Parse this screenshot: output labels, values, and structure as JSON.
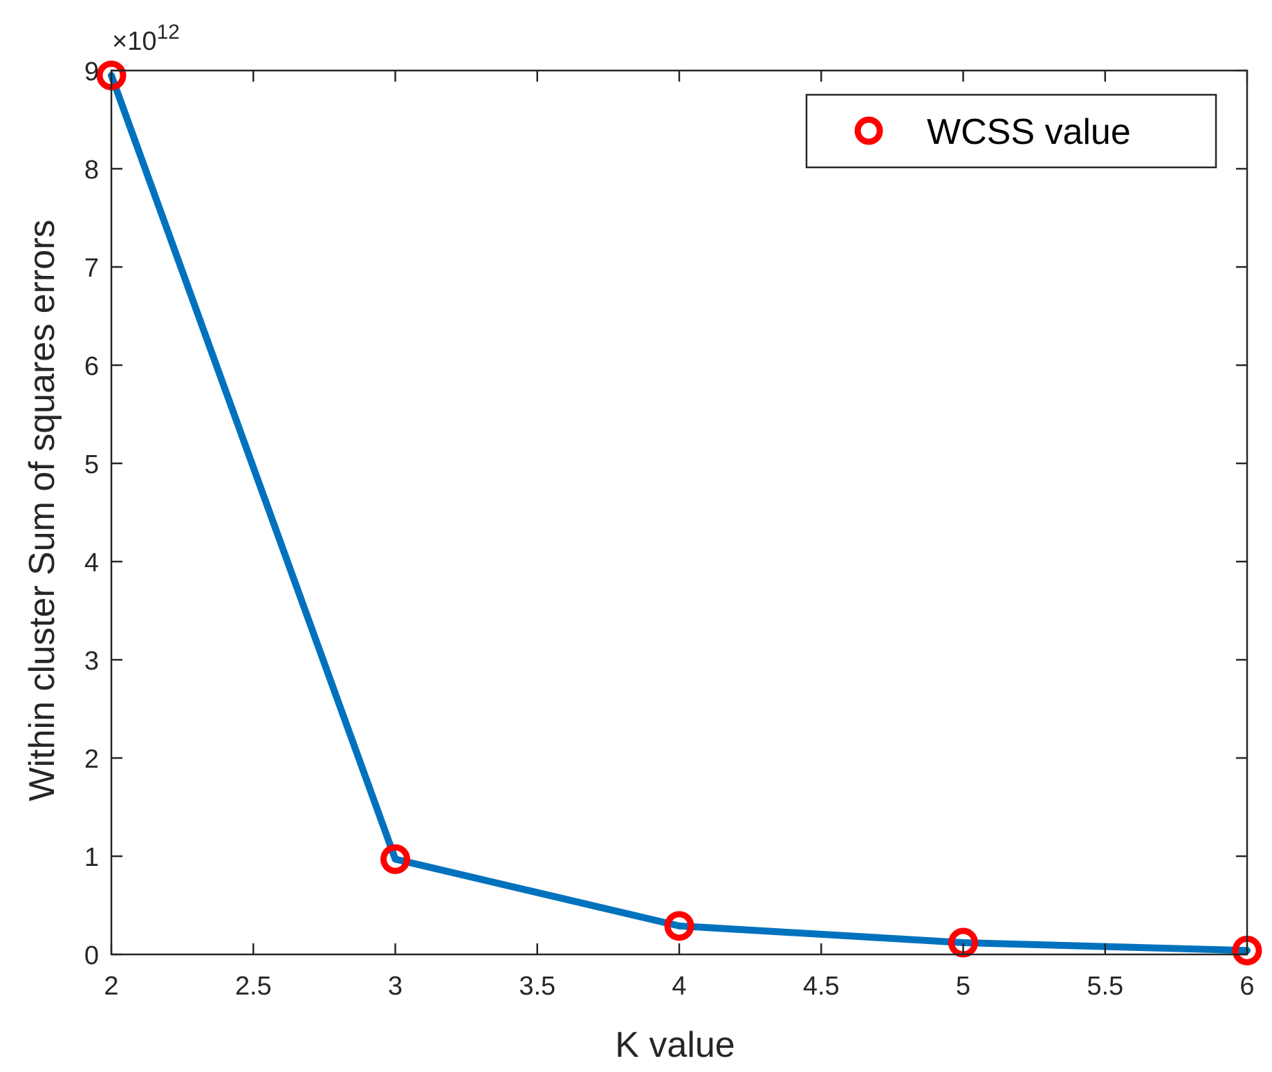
{
  "chart_data": {
    "type": "line",
    "title": "",
    "xlabel": "K value",
    "ylabel": "Within cluster Sum of squares errors",
    "y_exponent_label": "×10",
    "y_exponent_power": "12",
    "xlim": [
      2,
      6
    ],
    "ylim": [
      0,
      9
    ],
    "x_ticks": [
      "2",
      "2.5",
      "3",
      "3.5",
      "4",
      "4.5",
      "5",
      "5.5",
      "6"
    ],
    "y_ticks": [
      "0",
      "1",
      "2",
      "3",
      "4",
      "5",
      "6",
      "7",
      "8",
      "9"
    ],
    "grid": false,
    "legend_position": "top-right",
    "series": [
      {
        "name": "WCSS value",
        "x": [
          2,
          3,
          4,
          5,
          6
        ],
        "values": [
          8.95,
          0.97,
          0.29,
          0.12,
          0.04
        ],
        "line_color": "#0072BD",
        "marker": "circle",
        "marker_color": "#FF0000"
      }
    ]
  }
}
